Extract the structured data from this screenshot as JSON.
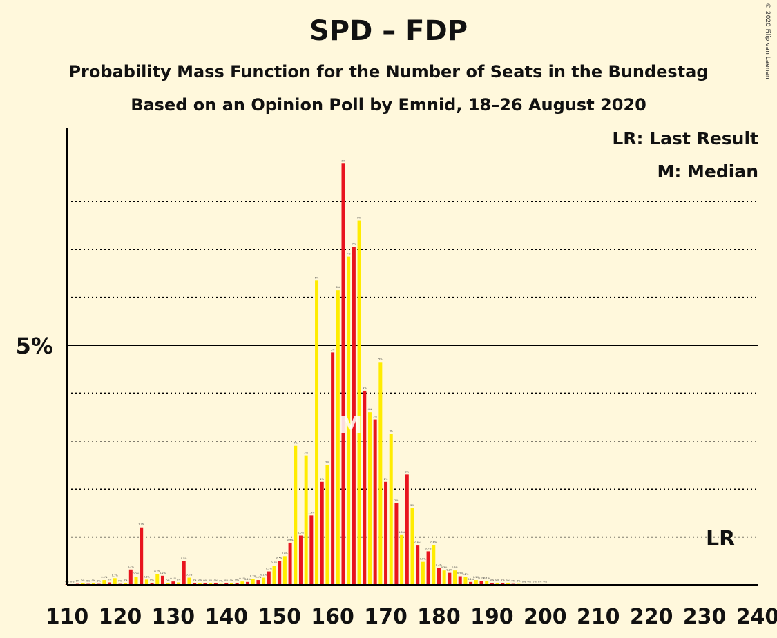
{
  "title": "SPD – FDP",
  "subtitle1": "Probability Mass Function for the Number of Seats in the Bundestag",
  "subtitle2": "Based on an Opinion Poll by Emnid, 18–26 August 2020",
  "copyright": "© 2020 Filip van Laenen",
  "legend": {
    "last_result": "LR: Last Result",
    "median": "M: Median"
  },
  "colors": {
    "background": "#FFF8DC",
    "red": "#E8141E",
    "yellow": "#FFEC00"
  },
  "chart_data": {
    "type": "bar",
    "xlim": [
      110,
      240
    ],
    "ylim": [
      0,
      9.6
    ],
    "x_ticks": [
      110,
      120,
      130,
      140,
      150,
      160,
      170,
      180,
      190,
      200,
      210,
      220,
      230,
      240
    ],
    "y_tick_label": "5%",
    "y_tick_value": 5,
    "gridlines": [
      1,
      2,
      3,
      4,
      6,
      7,
      8
    ],
    "median_seat": 163,
    "median_label": "M",
    "last_result_seat": 233,
    "last_result_label": "LR",
    "x": [
      110,
      111,
      112,
      113,
      114,
      115,
      116,
      117,
      118,
      119,
      120,
      121,
      122,
      123,
      124,
      125,
      126,
      127,
      128,
      129,
      130,
      131,
      132,
      133,
      134,
      135,
      136,
      137,
      138,
      139,
      140,
      141,
      142,
      143,
      144,
      145,
      146,
      147,
      148,
      149,
      150,
      151,
      152,
      153,
      154,
      155,
      156,
      157,
      158,
      159,
      160,
      161,
      162,
      163,
      164,
      165,
      166,
      167,
      168,
      169,
      170,
      171,
      172,
      173,
      174,
      175,
      176,
      177,
      178,
      179,
      180,
      181,
      182,
      183,
      184,
      185,
      186,
      187,
      188,
      189,
      190,
      191,
      192,
      193,
      194,
      195,
      196,
      197,
      198,
      199,
      200
    ],
    "values": [
      0.01,
      0.01,
      0.02,
      0.03,
      0.02,
      0.03,
      0.02,
      0.1,
      0.05,
      0.14,
      0.02,
      0.04,
      0.32,
      0.17,
      1.2,
      0.11,
      0.04,
      0.22,
      0.19,
      0.03,
      0.07,
      0.05,
      0.49,
      0.15,
      0.04,
      0.04,
      0.03,
      0.03,
      0.03,
      0.02,
      0.03,
      0.03,
      0.04,
      0.07,
      0.06,
      0.12,
      0.1,
      0.15,
      0.28,
      0.4,
      0.5,
      0.6,
      0.88,
      2.9,
      1.03,
      2.7,
      1.45,
      6.35,
      2.15,
      2.5,
      4.85,
      6.15,
      8.8,
      6.85,
      7.05,
      7.6,
      4.05,
      3.6,
      3.45,
      4.65,
      2.15,
      3.15,
      1.7,
      1.04,
      2.3,
      1.6,
      0.82,
      0.48,
      0.7,
      0.83,
      0.35,
      0.3,
      0.25,
      0.3,
      0.18,
      0.16,
      0.06,
      0.1,
      0.08,
      0.08,
      0.04,
      0.04,
      0.04,
      0.03,
      0.02,
      0.02,
      0.01,
      0.01,
      0.01,
      0.01,
      0.01
    ],
    "value_labels": [
      "0%",
      "0%",
      "0%",
      "0%",
      "0%",
      "0%",
      "0%",
      "0.1%",
      "0%",
      "0.1%",
      "0%",
      "0%",
      "0.3%",
      "0.2%",
      "1.2%",
      "0.1%",
      "0%",
      "0.2%",
      "0.2%",
      "0%",
      "0.1%",
      "0%",
      "0.5%",
      "0.2%",
      "0%",
      "0%",
      "0%",
      "0%",
      "0%",
      "0%",
      "0%",
      "0%",
      "0%",
      "0.1%",
      "0.1%",
      "0.1%",
      "0.1%",
      "0.1%",
      "0.3%",
      "0.4%",
      "0.5%",
      "0.6%",
      "0.9%",
      "3%",
      "1.0%",
      "3%",
      "1.4%",
      "6%",
      "2%",
      "2%",
      "5%",
      "6%",
      "9%",
      "7%",
      "7%",
      "8%",
      "4%",
      "4%",
      "3%",
      "5%",
      "2%",
      "3%",
      "2%",
      "1.0%",
      "2%",
      "2%",
      "0.8%",
      "0.5%",
      "0.7%",
      "0.8%",
      "0.4%",
      "0.3%",
      "0.2%",
      "0.3%",
      "0.2%",
      "0.2%",
      "0.1%",
      "0.1%",
      "0.1%",
      "0.1%",
      "0%",
      "0%",
      "0%",
      "0%",
      "0%",
      "0%",
      "0%",
      "0%",
      "0%",
      "0%",
      "0%"
    ]
  }
}
